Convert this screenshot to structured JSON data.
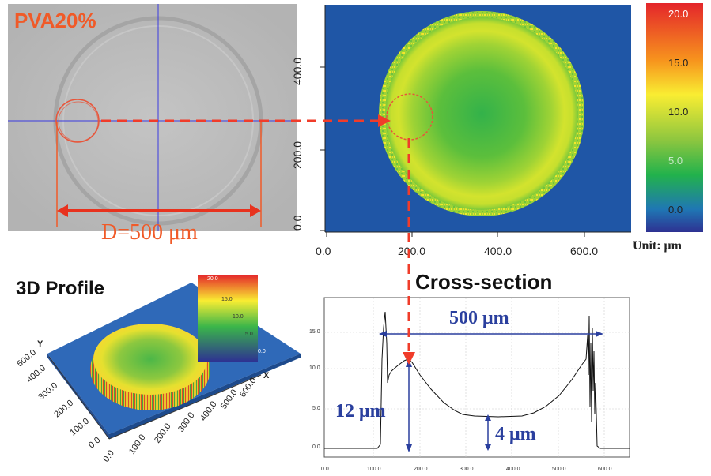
{
  "photo": {
    "title": "PVA20%",
    "diameter_label": "D=500 μm"
  },
  "heatmap": {
    "x_ticks": [
      "0.0",
      "200.0",
      "400.0",
      "600.0"
    ],
    "y_ticks": [
      "0.0",
      "200.0",
      "400.0"
    ],
    "colorbar_ticks": [
      "20.0",
      "15.0",
      "10.0",
      "5.0",
      "0.0"
    ],
    "unit_label": "Unit: μm"
  },
  "profile3d": {
    "title": "3D Profile",
    "colorbar_ticks": [
      "20.0",
      "15.0",
      "10.0",
      "5.0",
      "0.0"
    ],
    "y_axis": {
      "label": "Y",
      "ticks": [
        "0.0",
        "100.0",
        "200.0",
        "300.0",
        "400.0",
        "500.0"
      ]
    },
    "x_axis": {
      "label": "X",
      "ticks": [
        "0.0",
        "100.0",
        "200.0",
        "300.0",
        "400.0",
        "500.0",
        "600.0"
      ]
    }
  },
  "cross_section": {
    "title": "Cross-section",
    "y_ticks": [
      "0.0",
      "5.0",
      "10.0",
      "15.0"
    ],
    "x_ticks": [
      "0.0",
      "100.0",
      "200.0",
      "300.0",
      "400.0",
      "500.0",
      "600.0"
    ],
    "annotations": {
      "width": "500 μm",
      "rim": "12 μm",
      "center": "4 μm"
    }
  },
  "colors": {
    "accent_red": "#f05a28",
    "annotation_blue": "#2a3f9e",
    "background_blue": "#1f56a6"
  }
}
